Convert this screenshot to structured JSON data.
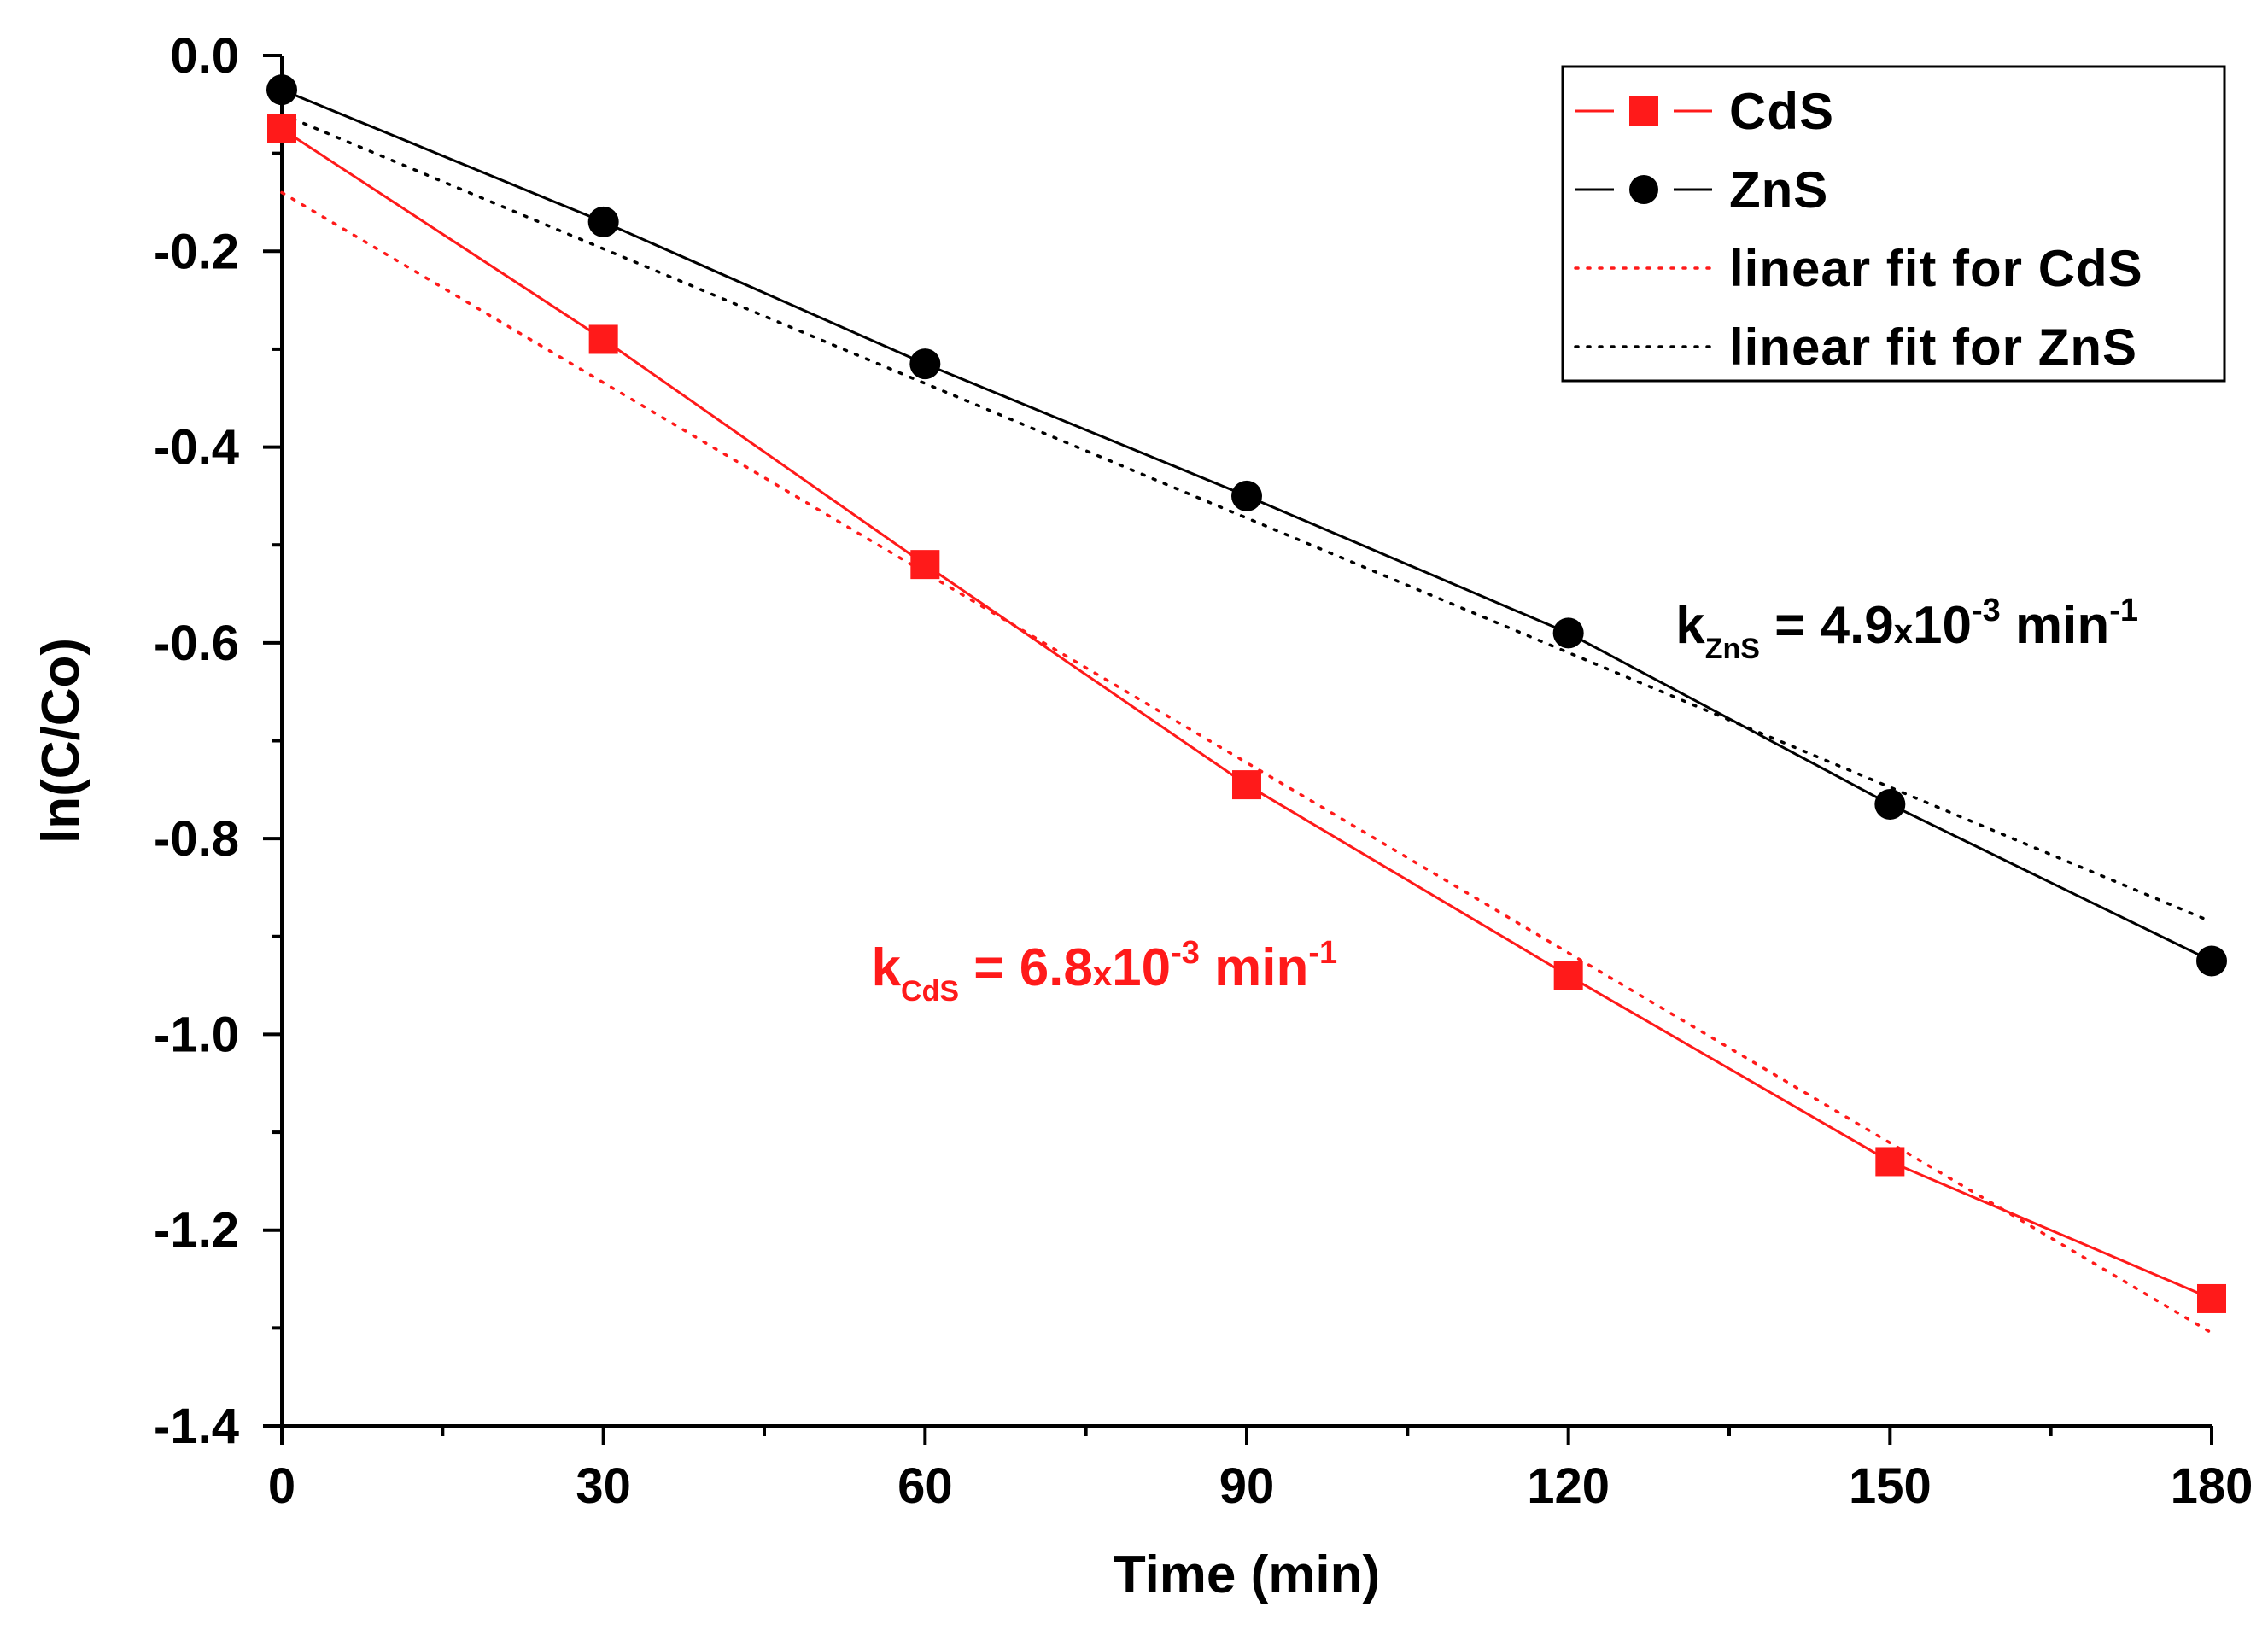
{
  "chart_data": {
    "type": "line",
    "title": "",
    "xlabel": "Time (min)",
    "ylabel": "ln(C/Co)",
    "xlim": [
      0,
      180
    ],
    "ylim": [
      -1.4,
      0.0
    ],
    "x_ticks": [
      0,
      30,
      60,
      90,
      120,
      150,
      180
    ],
    "x_tick_labels": [
      "0",
      "30",
      "60",
      "90",
      "120",
      "150",
      "180"
    ],
    "x_minor_step": 15,
    "y_ticks": [
      0.0,
      -0.2,
      -0.4,
      -0.6,
      -0.8,
      -1.0,
      -1.2,
      -1.4
    ],
    "y_tick_labels": [
      "0.0",
      "-0.2",
      "-0.4",
      "-0.6",
      "-0.8",
      "-1.0",
      "-1.2",
      "-1.4"
    ],
    "y_minor_step": 0.1,
    "grid": false,
    "legend_position": "top-right",
    "series": [
      {
        "name": "CdS",
        "color": "#ff1a1a",
        "marker": "square",
        "x": [
          0,
          30,
          60,
          90,
          120,
          150,
          180
        ],
        "values": [
          -0.075,
          -0.29,
          -0.52,
          -0.745,
          -0.94,
          -1.13,
          -1.27
        ]
      },
      {
        "name": "ZnS",
        "color": "#000000",
        "marker": "circle",
        "x": [
          0,
          30,
          60,
          90,
          120,
          150,
          180
        ],
        "values": [
          -0.035,
          -0.17,
          -0.315,
          -0.45,
          -0.59,
          -0.765,
          -0.925
        ]
      },
      {
        "name": "linear fit for CdS",
        "color": "#ff1a1a",
        "style": "dotted",
        "x": [
          0,
          180
        ],
        "values": [
          -0.14,
          -1.305
        ]
      },
      {
        "name": "linear fit for ZnS",
        "color": "#000000",
        "style": "dotted",
        "x": [
          0,
          180
        ],
        "values": [
          -0.06,
          -0.885
        ]
      }
    ],
    "annotations": [
      {
        "id": "zns",
        "color": "#000000",
        "at": [
          130,
          -0.6
        ],
        "main": "k",
        "sub": "ZnS",
        "value": " = 4.9",
        "times": "x",
        "base": "10",
        "exp": "-3",
        "unit": " min",
        "unit_exp": "-1"
      },
      {
        "id": "cds",
        "color": "#ff1a1a",
        "at": [
          55,
          -0.95
        ],
        "main": "k",
        "sub": "CdS",
        "value": " = 6.8",
        "times": "x",
        "base": "10",
        "exp": "-3",
        "unit": " min",
        "unit_exp": "-1"
      }
    ]
  }
}
